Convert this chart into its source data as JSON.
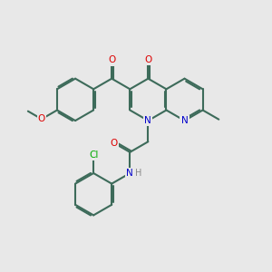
{
  "bg_color": "#e8e8e8",
  "bond_color": "#3d6b5a",
  "bond_lw": 1.5,
  "atom_colors": {
    "O": "#dd0000",
    "N": "#0000cc",
    "Cl": "#00aa00",
    "H": "#888888"
  },
  "figsize": [
    3.0,
    3.0
  ],
  "dpi": 100
}
